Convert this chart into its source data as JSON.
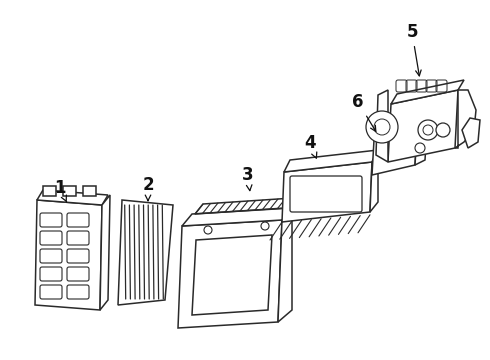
{
  "background_color": "#ffffff",
  "line_color": "#2a2a2a",
  "line_width": 1.1,
  "figsize": [
    4.9,
    3.6
  ],
  "dpi": 100
}
